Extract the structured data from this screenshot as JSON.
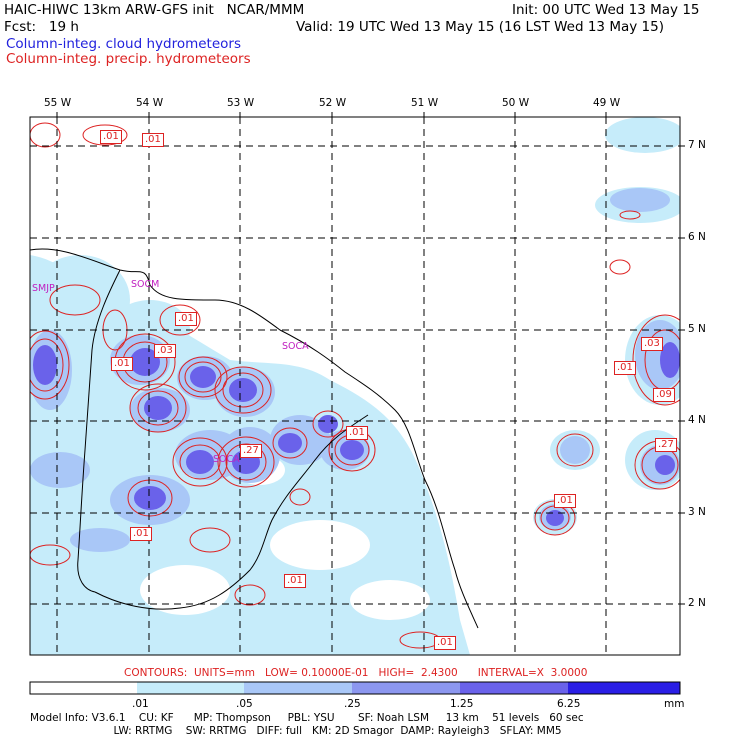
{
  "header": {
    "line1_left": "HAIC-HIWC 13km ARW-GFS init   NCAR/MMM",
    "line1_right": "Init: 00 UTC Wed 13 May 15",
    "line2_left": "Fcst:   19 h",
    "line2_right": "Valid: 19 UTC Wed 13 May 15 (16 LST Wed 13 May 15)",
    "field1": "Column-integ. cloud hydrometeors",
    "field2": "Column-integ. precip. hydrometeors"
  },
  "axes": {
    "lon_labels": [
      "55 W",
      "54 W",
      "53 W",
      "52 W",
      "51 W",
      "50 W",
      "49 W"
    ],
    "lat_labels": [
      "7 N",
      "6 N",
      "5 N",
      "4 N",
      "3 N",
      "2 N"
    ]
  },
  "contour_labels": [
    ".01",
    ".01",
    ".01",
    ".03",
    ".01",
    ".01",
    ".27",
    ".01",
    ".01",
    ".01",
    ".01",
    ".03",
    ".09",
    ".27",
    ".01"
  ],
  "place_labels": [
    "SMJP",
    "SOCM",
    "SOCA",
    "SOCA"
  ],
  "contours_info": "CONTOURS:  UNITS=mm   LOW= 0.10000E-01   HIGH=  2.4300      INTERVAL=X  3.0000",
  "colorbar": {
    "ticks": [
      ".01",
      ".05",
      ".25",
      "1.25",
      "6.25"
    ],
    "units": "mm",
    "colors": [
      "#ffffff",
      "#c6ecfa",
      "#a9c7f7",
      "#8c97ef",
      "#6a62ea",
      "#2a1ee5"
    ]
  },
  "model_info": {
    "line1": "Model Info: V3.6.1    CU: KF      MP: Thompson     PBL: YSU       SF: Noah LSM     13 km    51 levels   60 sec",
    "line2": "                         LW: RRTMG    SW: RRTMG   DIFF: full   KM: 2D Smagor  DAMP: Rayleigh3   SFLAY: MM5"
  }
}
